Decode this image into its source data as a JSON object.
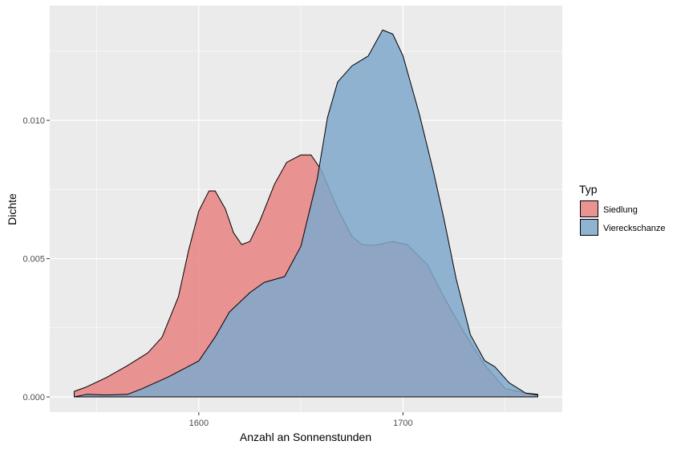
{
  "chart_data": {
    "type": "area",
    "subtype": "density",
    "title": "",
    "xlabel": "Anzahl an Sonnenstunden",
    "ylabel": "Dichte",
    "xlim": [
      1527,
      1778
    ],
    "ylim": [
      -0.00055,
      0.01415
    ],
    "x_ticks": [
      1600,
      1700
    ],
    "x_tick_labels": [
      "1600",
      "1700"
    ],
    "y_ticks": [
      0.0,
      0.005,
      0.01
    ],
    "y_tick_labels": [
      "0.000",
      "0.005",
      "0.010"
    ],
    "grid": true,
    "legend": {
      "title": "Typ",
      "position": "right",
      "entries": [
        "Siedlung",
        "Viereckschanze"
      ]
    },
    "series": [
      {
        "name": "Siedlung",
        "color": "#F8766D",
        "fill": "#E88381",
        "opacity": 0.85,
        "points": [
          [
            1539,
            0.0002
          ],
          [
            1545,
            0.00036
          ],
          [
            1555,
            0.00071
          ],
          [
            1565,
            0.00113
          ],
          [
            1575,
            0.00159
          ],
          [
            1582,
            0.00216
          ],
          [
            1590,
            0.00362
          ],
          [
            1595,
            0.0053
          ],
          [
            1600,
            0.00672
          ],
          [
            1605,
            0.00745
          ],
          [
            1608,
            0.00745
          ],
          [
            1613,
            0.0068
          ],
          [
            1617,
            0.00594
          ],
          [
            1621,
            0.00551
          ],
          [
            1625,
            0.00562
          ],
          [
            1630,
            0.00638
          ],
          [
            1637,
            0.00768
          ],
          [
            1643,
            0.00848
          ],
          [
            1650,
            0.00875
          ],
          [
            1655,
            0.00875
          ],
          [
            1660,
            0.0082
          ],
          [
            1668,
            0.0068
          ],
          [
            1675,
            0.0058
          ],
          [
            1680,
            0.00551
          ],
          [
            1686,
            0.00548
          ],
          [
            1695,
            0.00562
          ],
          [
            1702,
            0.00551
          ],
          [
            1712,
            0.00478
          ],
          [
            1720,
            0.00362
          ],
          [
            1730,
            0.00232
          ],
          [
            1740,
            0.00116
          ],
          [
            1750,
            0.0003
          ],
          [
            1760,
            0.00014
          ],
          [
            1766,
            9e-05
          ]
        ]
      },
      {
        "name": "Viereckschanze",
        "color": "#00BFC4",
        "fill": "#7FA8CC",
        "opacity": 0.85,
        "points": [
          [
            1539,
            0.0
          ],
          [
            1545,
            9e-05
          ],
          [
            1555,
            7e-05
          ],
          [
            1565,
            9e-05
          ],
          [
            1572,
            0.00029
          ],
          [
            1585,
            0.00072
          ],
          [
            1600,
            0.0013
          ],
          [
            1608,
            0.00217
          ],
          [
            1615,
            0.00307
          ],
          [
            1625,
            0.00377
          ],
          [
            1632,
            0.00414
          ],
          [
            1642,
            0.00435
          ],
          [
            1650,
            0.00545
          ],
          [
            1658,
            0.00788
          ],
          [
            1663,
            0.0101
          ],
          [
            1668,
            0.01139
          ],
          [
            1675,
            0.01197
          ],
          [
            1683,
            0.01233
          ],
          [
            1690,
            0.01327
          ],
          [
            1695,
            0.01312
          ],
          [
            1700,
            0.01233
          ],
          [
            1708,
            0.01023
          ],
          [
            1715,
            0.00812
          ],
          [
            1720,
            0.00646
          ],
          [
            1726,
            0.00428
          ],
          [
            1733,
            0.00225
          ],
          [
            1740,
            0.00131
          ],
          [
            1745,
            0.00109
          ],
          [
            1752,
            0.00051
          ],
          [
            1760,
            0.00014
          ],
          [
            1766,
            7e-05
          ]
        ]
      }
    ]
  }
}
